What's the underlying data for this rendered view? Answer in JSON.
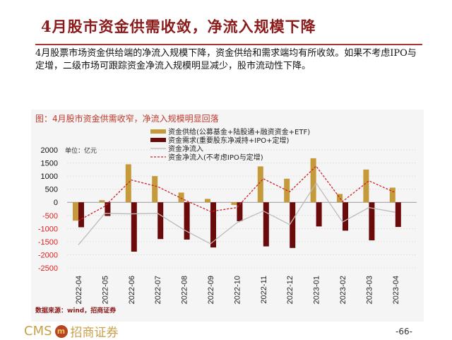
{
  "slide": {
    "title": "4月股市资金供需收敛，净流入规模下降",
    "body": "4月股票市场资金供给端的净流入规模下降，资金供给和需求端均有所收敛。如果不考虑IPO与定增，二级市场可跟踪资金净流入规模明显减少，股市流动性下降。",
    "source": "数据来源：wind，招商证券",
    "logo_text": "CMS 招商证券",
    "logo_latin": "CMS",
    "logo_cn": "招商证券",
    "page_number": "-66-"
  },
  "chart_data": {
    "type": "bar",
    "title": "图：4月股市资金供需收窄，净流入规模明显回落",
    "unit_label": "单位：亿元",
    "categories": [
      "2022-04",
      "2022-05",
      "2022-06",
      "2022-07",
      "2022-08",
      "2022-09",
      "2022-10",
      "2022-11",
      "2022-12",
      "2023-01",
      "2023-02",
      "2023-03",
      "2023-04"
    ],
    "ylim": [
      -2500,
      2000
    ],
    "yticks": [
      2000,
      1500,
      1000,
      500,
      0,
      -500,
      -1000,
      -1500,
      -2000,
      -2500
    ],
    "grid": true,
    "legend_position": "top-center",
    "series": [
      {
        "name": "资金供给(公募基金+陆股通+融资资金+ETF)",
        "kind": "bar",
        "color": "#c49a3a",
        "values": [
          -700,
          80,
          1450,
          1000,
          370,
          130,
          -100,
          1370,
          900,
          1680,
          320,
          1250,
          560
        ]
      },
      {
        "name": "资金需求(重要股东净减持+IPO+定增)",
        "kind": "bar",
        "color": "#6b0a0a",
        "values": [
          -950,
          -520,
          -1880,
          -1400,
          -1420,
          -1720,
          -720,
          -1680,
          -1740,
          -920,
          -1080,
          -1450,
          -940
        ]
      },
      {
        "name": "资金净流入",
        "kind": "line",
        "color": "#bbbbbb",
        "values": [
          -1620,
          -420,
          -440,
          -420,
          -1050,
          -1580,
          -780,
          -330,
          -850,
          730,
          -750,
          -200,
          -380
        ]
      },
      {
        "name": "资金净流入(不考虑IPO与定增)",
        "kind": "dashed-line",
        "color": "#d0202a",
        "values": [
          -700,
          -150,
          850,
          600,
          100,
          -350,
          -200,
          900,
          400,
          1380,
          30,
          820,
          370
        ]
      }
    ],
    "colors": {
      "positive_tick": "#111111",
      "negative_tick": "#e02020"
    }
  }
}
